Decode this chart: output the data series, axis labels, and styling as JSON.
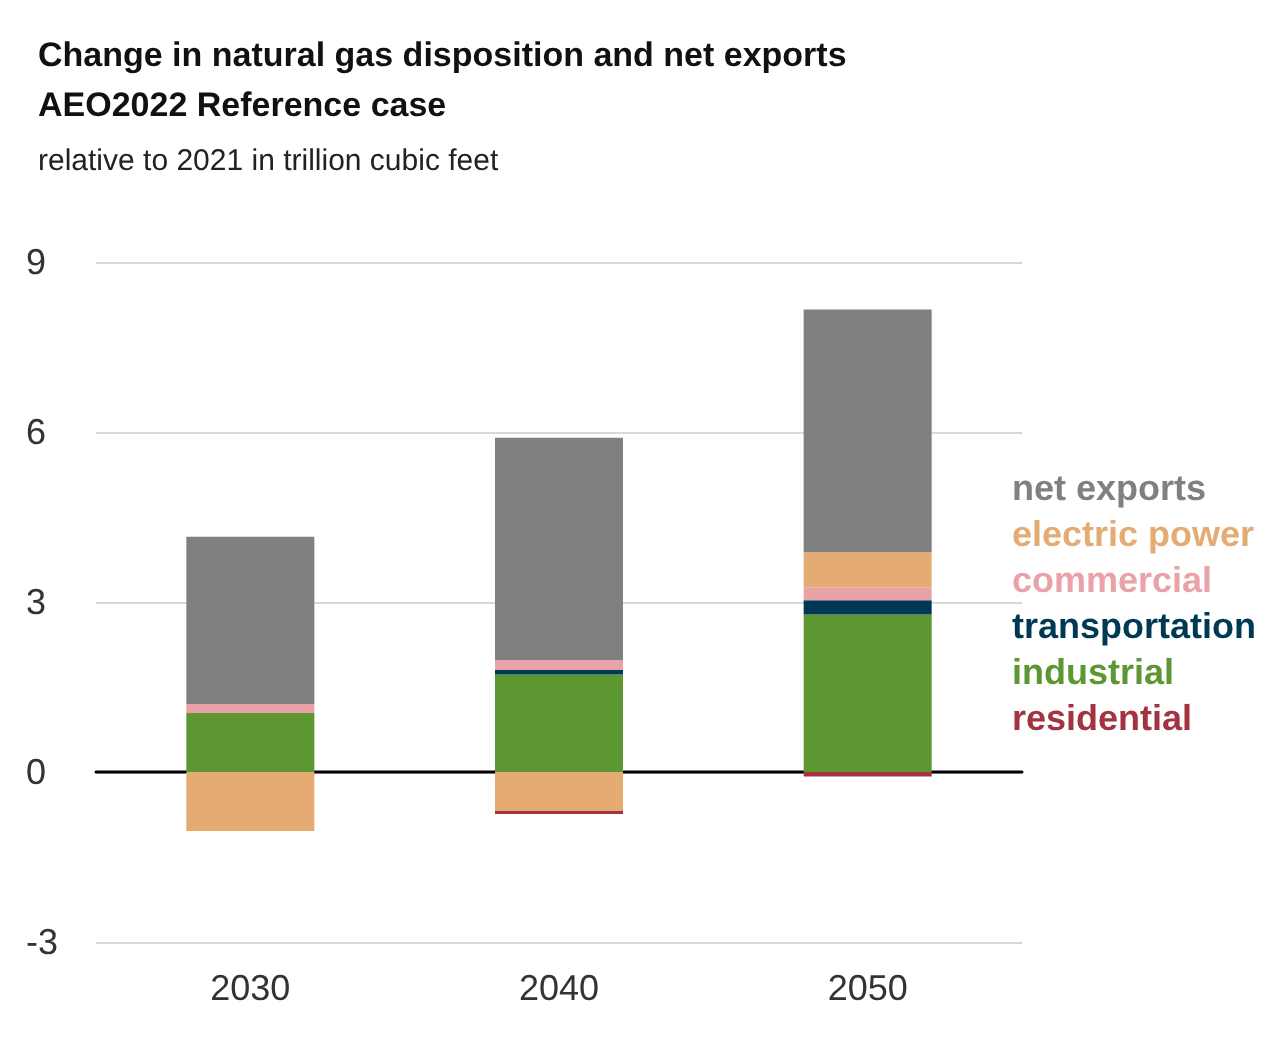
{
  "chart_data": {
    "type": "bar",
    "title": "Change in natural gas disposition and net exports\nAEO2022 Reference case",
    "subtitle": "relative to 2021 in trillion cubic feet",
    "categories": [
      "2030",
      "2040",
      "2050"
    ],
    "stacked": true,
    "ylim": [
      -3,
      9
    ],
    "yticks": [
      -3,
      0,
      3,
      6,
      9
    ],
    "grid": "y",
    "legend": "right",
    "series": [
      {
        "name": "industrial",
        "color": "#5d9732",
        "values": [
          1.04,
          1.72,
          2.78
        ]
      },
      {
        "name": "transportation",
        "color": "#003953",
        "values": [
          0,
          0.08,
          0.25
        ]
      },
      {
        "name": "commercial",
        "color": "#e8a2a8",
        "values": [
          0.16,
          0.17,
          0.23
        ]
      },
      {
        "name": "electric power",
        "color": "#e4ac73",
        "values": [
          -1.04,
          -0.69,
          0.62
        ]
      },
      {
        "name": "residential",
        "color": "#a33340",
        "values": [
          0,
          -0.05,
          -0.08
        ]
      },
      {
        "name": "net exports",
        "color": "#808080",
        "values": [
          2.95,
          3.93,
          4.28
        ]
      }
    ]
  }
}
